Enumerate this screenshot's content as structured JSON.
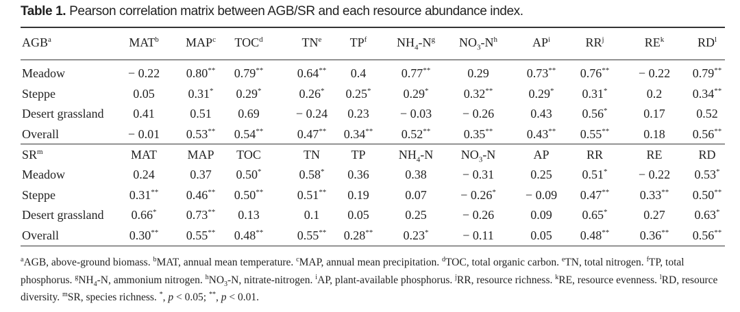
{
  "title": {
    "label": "Table 1.",
    "text": "Pearson correlation matrix between AGB/SR and each resource abundance index."
  },
  "table": {
    "sections": [
      {
        "header": [
          [
            {
              "text": "AGB"
            },
            {
              "sup": "a"
            }
          ],
          [
            {
              "text": "MAT"
            },
            {
              "sup": "b"
            }
          ],
          [
            {
              "text": "MAP"
            },
            {
              "sup": "c"
            }
          ],
          [
            {
              "text": "TOC"
            },
            {
              "sup": "d"
            }
          ],
          [
            {
              "text": "TN"
            },
            {
              "sup": "e"
            }
          ],
          [
            {
              "text": "TP"
            },
            {
              "sup": "f"
            }
          ],
          [
            {
              "text": "NH"
            },
            {
              "sub": "4"
            },
            {
              "text": "-N"
            },
            {
              "sup": "g"
            }
          ],
          [
            {
              "text": "NO"
            },
            {
              "sub": "3"
            },
            {
              "text": "-N"
            },
            {
              "sup": "h"
            }
          ],
          [
            {
              "text": "AP"
            },
            {
              "sup": "i"
            }
          ],
          [
            {
              "text": "RR"
            },
            {
              "sup": "j"
            }
          ],
          [
            {
              "text": "RE"
            },
            {
              "sup": "k"
            }
          ],
          [
            {
              "text": "RD"
            },
            {
              "sup": "l"
            }
          ]
        ],
        "rows": [
          {
            "label": "Meadow",
            "cells": [
              "− 0.22",
              [
                {
                  "text": "0.80"
                },
                {
                  "sup": "**"
                }
              ],
              [
                {
                  "text": "0.79"
                },
                {
                  "sup": "**"
                }
              ],
              [
                {
                  "text": "0.64"
                },
                {
                  "sup": "**"
                }
              ],
              "0.4",
              [
                {
                  "text": "0.77"
                },
                {
                  "sup": "**"
                }
              ],
              "0.29",
              [
                {
                  "text": "0.73"
                },
                {
                  "sup": "**"
                }
              ],
              [
                {
                  "text": "0.76"
                },
                {
                  "sup": "**"
                }
              ],
              "− 0.22",
              [
                {
                  "text": "0.79"
                },
                {
                  "sup": "**"
                }
              ]
            ]
          },
          {
            "label": "Steppe",
            "cells": [
              "0.05",
              [
                {
                  "text": "0.31"
                },
                {
                  "sup": "*"
                }
              ],
              [
                {
                  "text": "0.29"
                },
                {
                  "sup": "*"
                }
              ],
              [
                {
                  "text": "0.26"
                },
                {
                  "sup": "*"
                }
              ],
              [
                {
                  "text": "0.25"
                },
                {
                  "sup": "*"
                }
              ],
              [
                {
                  "text": "0.29"
                },
                {
                  "sup": "*"
                }
              ],
              [
                {
                  "text": "0.32"
                },
                {
                  "sup": "**"
                }
              ],
              [
                {
                  "text": "0.29"
                },
                {
                  "sup": "*"
                }
              ],
              [
                {
                  "text": "0.31"
                },
                {
                  "sup": "*"
                }
              ],
              "0.2",
              [
                {
                  "text": "0.34"
                },
                {
                  "sup": "**"
                }
              ]
            ]
          },
          {
            "label": "Desert grassland",
            "cells": [
              "0.41",
              "0.51",
              "0.69",
              "− 0.24",
              "0.23",
              "− 0.03",
              "− 0.26",
              "0.43",
              [
                {
                  "text": "0.56"
                },
                {
                  "sup": "*"
                }
              ],
              "0.17",
              "0.52"
            ]
          },
          {
            "label": "Overall",
            "cells": [
              "− 0.01",
              [
                {
                  "text": "0.53"
                },
                {
                  "sup": "**"
                }
              ],
              [
                {
                  "text": "0.54"
                },
                {
                  "sup": "**"
                }
              ],
              [
                {
                  "text": "0.47"
                },
                {
                  "sup": "**"
                }
              ],
              [
                {
                  "text": "0.34"
                },
                {
                  "sup": "**"
                }
              ],
              [
                {
                  "text": "0.52"
                },
                {
                  "sup": "**"
                }
              ],
              [
                {
                  "text": "0.35"
                },
                {
                  "sup": "**"
                }
              ],
              [
                {
                  "text": "0.43"
                },
                {
                  "sup": "**"
                }
              ],
              [
                {
                  "text": "0.55"
                },
                {
                  "sup": "**"
                }
              ],
              "0.18",
              [
                {
                  "text": "0.56"
                },
                {
                  "sup": "**"
                }
              ]
            ]
          }
        ]
      },
      {
        "header": [
          [
            {
              "text": "SR"
            },
            {
              "sup": "m"
            }
          ],
          "MAT",
          "MAP",
          "TOC",
          "TN",
          "TP",
          [
            {
              "text": "NH"
            },
            {
              "sub": "4"
            },
            {
              "text": "-N"
            }
          ],
          [
            {
              "text": "NO"
            },
            {
              "sub": "3"
            },
            {
              "text": "-N"
            }
          ],
          "AP",
          "RR",
          "RE",
          "RD"
        ],
        "rows": [
          {
            "label": "Meadow",
            "cells": [
              "0.24",
              "0.37",
              [
                {
                  "text": "0.50"
                },
                {
                  "sup": "*"
                }
              ],
              [
                {
                  "text": "0.58"
                },
                {
                  "sup": "*"
                }
              ],
              "0.36",
              "0.38",
              "− 0.31",
              "0.25",
              [
                {
                  "text": "0.51"
                },
                {
                  "sup": "*"
                }
              ],
              "− 0.22",
              [
                {
                  "text": "0.53"
                },
                {
                  "sup": "*"
                }
              ]
            ]
          },
          {
            "label": "Steppe",
            "cells": [
              [
                {
                  "text": "0.31"
                },
                {
                  "sup": "**"
                }
              ],
              [
                {
                  "text": "0.46"
                },
                {
                  "sup": "**"
                }
              ],
              [
                {
                  "text": "0.50"
                },
                {
                  "sup": "**"
                }
              ],
              [
                {
                  "text": "0.51"
                },
                {
                  "sup": "**"
                }
              ],
              "0.19",
              "0.07",
              [
                {
                  "text": "− 0.26"
                },
                {
                  "sup": "*"
                }
              ],
              "− 0.09",
              [
                {
                  "text": "0.47"
                },
                {
                  "sup": "**"
                }
              ],
              [
                {
                  "text": "0.33"
                },
                {
                  "sup": "**"
                }
              ],
              [
                {
                  "text": "0.50"
                },
                {
                  "sup": "**"
                }
              ]
            ]
          },
          {
            "label": "Desert grassland",
            "cells": [
              [
                {
                  "text": "0.66"
                },
                {
                  "sup": "*"
                }
              ],
              [
                {
                  "text": "0.73"
                },
                {
                  "sup": "**"
                }
              ],
              "0.13",
              "0.1",
              "0.05",
              "0.25",
              "− 0.26",
              "0.09",
              [
                {
                  "text": "0.65"
                },
                {
                  "sup": "*"
                }
              ],
              "0.27",
              [
                {
                  "text": "0.63"
                },
                {
                  "sup": "*"
                }
              ]
            ]
          },
          {
            "label": "Overall",
            "cells": [
              [
                {
                  "text": "0.30"
                },
                {
                  "sup": "**"
                }
              ],
              [
                {
                  "text": "0.55"
                },
                {
                  "sup": "**"
                }
              ],
              [
                {
                  "text": "0.48"
                },
                {
                  "sup": "**"
                }
              ],
              [
                {
                  "text": "0.55"
                },
                {
                  "sup": "**"
                }
              ],
              [
                {
                  "text": "0.28"
                },
                {
                  "sup": "**"
                }
              ],
              [
                {
                  "text": "0.23"
                },
                {
                  "sup": "*"
                }
              ],
              "− 0.11",
              "0.05",
              [
                {
                  "text": "0.48"
                },
                {
                  "sup": "**"
                }
              ],
              [
                {
                  "text": "0.36"
                },
                {
                  "sup": "**"
                }
              ],
              [
                {
                  "text": "0.56"
                },
                {
                  "sup": "**"
                }
              ]
            ]
          }
        ]
      }
    ]
  },
  "footnote": [
    {
      "sup": "a"
    },
    {
      "text": "AGB, above-ground biomass. "
    },
    {
      "sup": "b"
    },
    {
      "text": "MAT, annual mean temperature. "
    },
    {
      "sup": "c"
    },
    {
      "text": "MAP, annual mean precipitation. "
    },
    {
      "sup": "d"
    },
    {
      "text": "TOC, total organic carbon. "
    },
    {
      "sup": "e"
    },
    {
      "text": "TN, total nitrogen. "
    },
    {
      "sup": "f"
    },
    {
      "text": "TP, total phosphorus. "
    },
    {
      "sup": "g"
    },
    {
      "text": "NH"
    },
    {
      "sub": "4"
    },
    {
      "text": "-N, ammonium nitrogen. "
    },
    {
      "sup": "h"
    },
    {
      "text": "NO"
    },
    {
      "sub": "3"
    },
    {
      "text": "-N, nitrate-nitrogen. "
    },
    {
      "sup": "i"
    },
    {
      "text": "AP, plant-available phosphorus. "
    },
    {
      "sup": "j"
    },
    {
      "text": "RR, resource richness. "
    },
    {
      "sup": "k"
    },
    {
      "text": "RE, resource evenness. "
    },
    {
      "sup": "l"
    },
    {
      "text": "RD, resource diversity. "
    },
    {
      "sup": "m"
    },
    {
      "text": "SR, species richness. "
    },
    {
      "sup": "*"
    },
    {
      "text": ", "
    },
    {
      "i": "p"
    },
    {
      "text": " < 0.05; "
    },
    {
      "sup": "**"
    },
    {
      "text": ", "
    },
    {
      "i": "p"
    },
    {
      "text": " < 0.01."
    }
  ]
}
